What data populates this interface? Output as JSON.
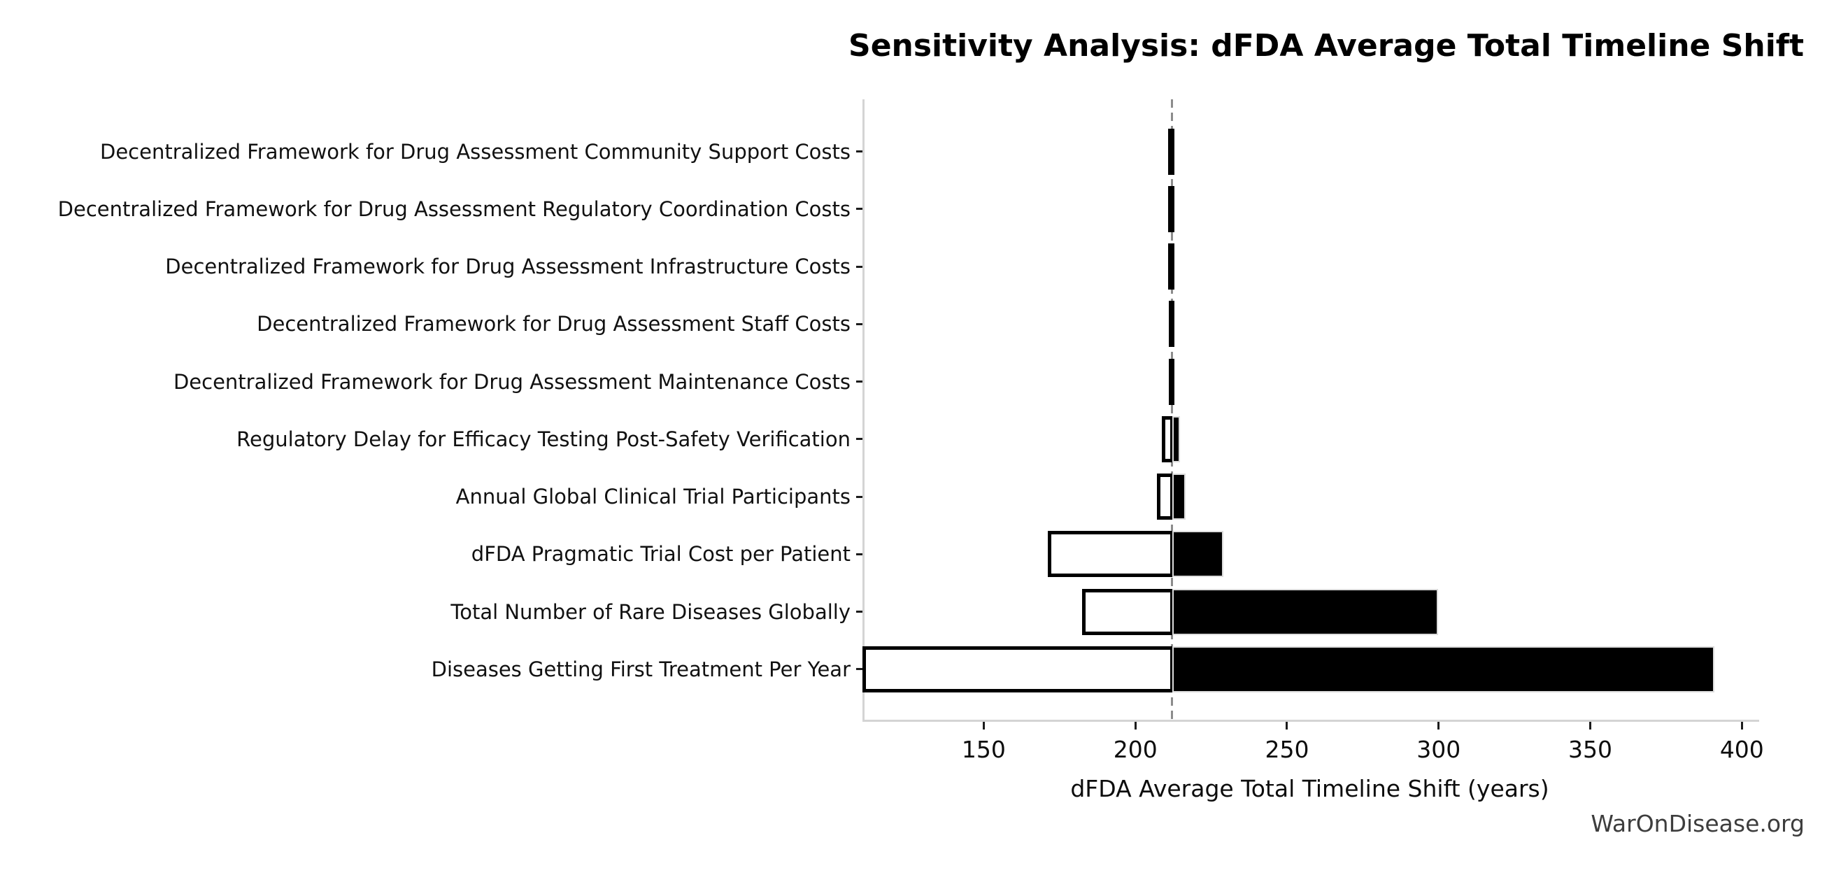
{
  "title": "Sensitivity Analysis: dFDA Average Total Timeline Shift",
  "watermark": "WarOnDisease.org",
  "chart_data": {
    "type": "bar",
    "subtype": "tornado-sensitivity",
    "title": "Sensitivity Analysis: dFDA Average Total Timeline Shift",
    "xlabel": "dFDA Average Total Timeline Shift (years)",
    "ylabel": "",
    "baseline": 212.1,
    "xlim": [
      110,
      405
    ],
    "xticks": [
      150,
      200,
      250,
      300,
      350,
      400
    ],
    "grid": false,
    "legend": "none",
    "orientation": "horizontal",
    "colors": {
      "low_fill": "#ffffff",
      "low_edge": "#000000",
      "high_fill": "#000000",
      "high_edge": "#dcdcdc",
      "baseline_line": "#8c8c8c",
      "spine": "#d4d4d4",
      "text": "#111111"
    },
    "rows": [
      {
        "label": "Decentralized Framework for Drug Assessment Community Support Costs",
        "low": 211.4,
        "high": 212.7
      },
      {
        "label": "Decentralized Framework for Drug Assessment Regulatory Coordination Costs",
        "low": 211.4,
        "high": 212.7
      },
      {
        "label": "Decentralized Framework for Drug Assessment Infrastructure Costs",
        "low": 211.4,
        "high": 212.7
      },
      {
        "label": "Decentralized Framework for Drug Assessment Staff Costs",
        "low": 211.5,
        "high": 212.7
      },
      {
        "label": "Decentralized Framework for Drug Assessment Maintenance Costs",
        "low": 211.5,
        "high": 212.6
      },
      {
        "label": "Regulatory Delay for Efficacy Testing Post-Safety Verification",
        "low": 209.4,
        "high": 214.8
      },
      {
        "label": "Annual Global Clinical Trial Participants",
        "low": 207.7,
        "high": 216.5
      },
      {
        "label": "dFDA Pragmatic Trial Cost per Patient",
        "low": 171.6,
        "high": 229.0
      },
      {
        "label": "Total Number of Rare Diseases Globally",
        "low": 182.9,
        "high": 299.8
      },
      {
        "label": "Diseases Getting First Treatment Per Year",
        "low": 110.5,
        "high": 391.0
      }
    ]
  }
}
